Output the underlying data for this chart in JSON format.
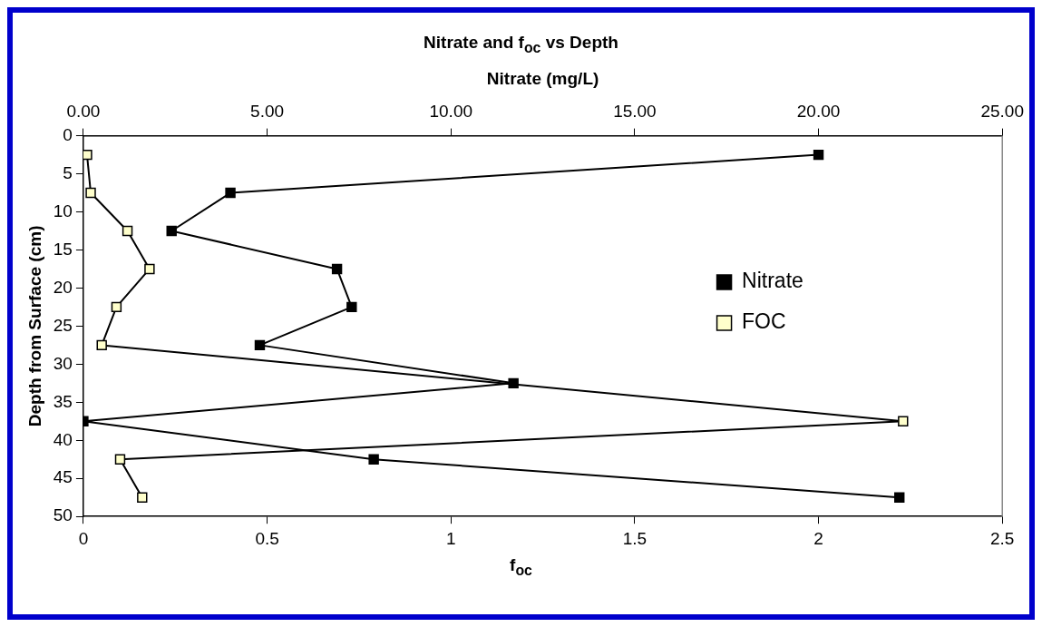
{
  "chart_data": {
    "type": "line",
    "title": "Nitrate and f$_{oc}$ vs Depth",
    "xlabel": "f$_{oc}$",
    "x2label": "Nitrate (mg/L)",
    "ylabel": "Depth from Surface (cm)",
    "xlim": [
      0,
      2.5
    ],
    "xticks": [
      0,
      0.5,
      1,
      1.5,
      2,
      2.5
    ],
    "x2lim": [
      0,
      25
    ],
    "x2ticks": [
      {
        "value": 0,
        "label": "0.00"
      },
      {
        "value": 5,
        "label": "5.00"
      },
      {
        "value": 10,
        "label": "10.00"
      },
      {
        "value": 15,
        "label": "15.00"
      },
      {
        "value": 20,
        "label": "20.00"
      },
      {
        "value": 25,
        "label": "25.00"
      }
    ],
    "ylim": [
      50,
      0
    ],
    "yticks": [
      0,
      5,
      10,
      15,
      20,
      25,
      30,
      35,
      40,
      45,
      50
    ],
    "marker": "square",
    "line_style": "solid",
    "legend": "right",
    "series": [
      {
        "name": "Nitrate",
        "color": "#000000",
        "axis": "x2",
        "x": [
          20.0,
          4.0,
          2.4,
          6.9,
          7.3,
          4.8,
          11.7,
          0.0,
          7.9,
          22.2
        ],
        "values": [
          2.5,
          7.5,
          12.5,
          17.5,
          22.5,
          27.5,
          32.5,
          37.5,
          42.5,
          47.5
        ]
      },
      {
        "name": "FOC",
        "color": "#ffffcc",
        "x": [
          0.01,
          0.02,
          0.12,
          0.18,
          0.09,
          0.05,
          2.23,
          0.1,
          0.16
        ],
        "values": [
          2.5,
          7.5,
          12.5,
          17.5,
          22.5,
          27.5,
          37.5,
          42.5,
          47.5
        ]
      }
    ]
  }
}
